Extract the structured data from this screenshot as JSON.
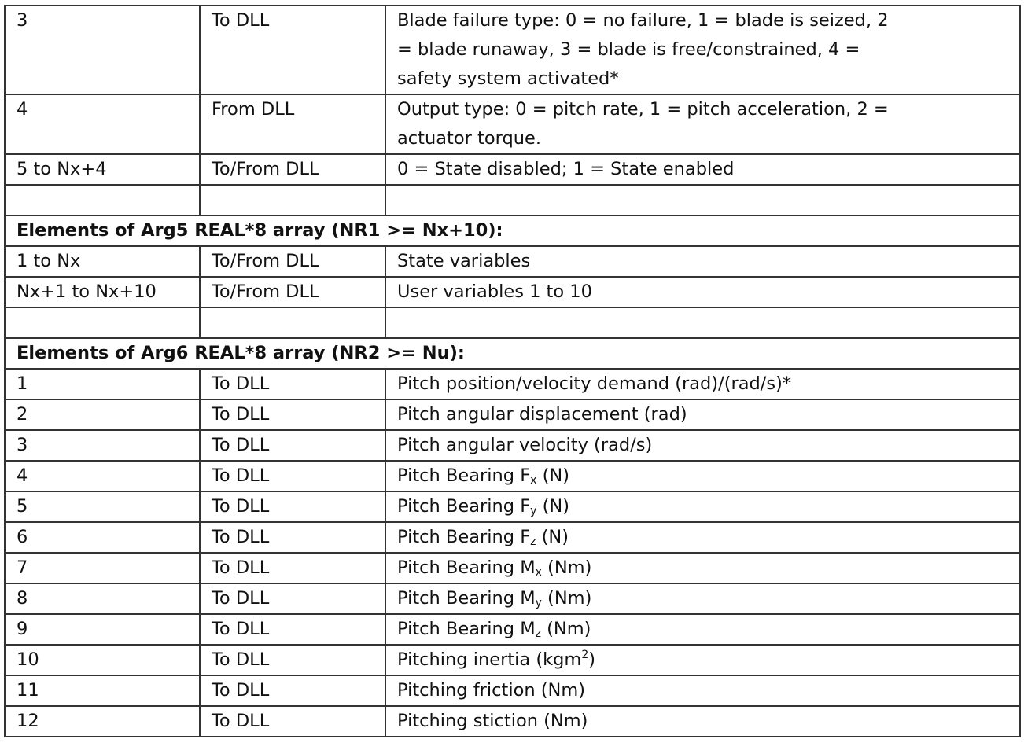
{
  "rows": [
    {
      "type": "row",
      "index": "3",
      "direction": "To DLL",
      "desc_lines": [
        "Blade failure type: 0 = no failure, 1 = blade is seized, 2",
        "= blade runaway, 3 = blade is free/constrained, 4 =",
        "safety system activated*"
      ]
    },
    {
      "type": "row",
      "index": "4",
      "direction": "From DLL",
      "desc_lines": [
        "Output type: 0 = pitch rate, 1 = pitch acceleration, 2 =",
        "actuator torque."
      ]
    },
    {
      "type": "row",
      "index": "5 to Nx+4",
      "direction": "To/From DLL",
      "desc_lines": [
        "0 = State disabled; 1 = State enabled"
      ]
    },
    {
      "type": "empty"
    },
    {
      "type": "header",
      "text": "Elements of Arg5 REAL*8 array (NR1 >= Nx+10):"
    },
    {
      "type": "row",
      "index": "1 to Nx",
      "direction": "To/From DLL",
      "desc_lines": [
        "State variables"
      ]
    },
    {
      "type": "row",
      "index": "Nx+1 to Nx+10",
      "direction": "To/From DLL",
      "desc_lines": [
        "User variables 1 to 10"
      ]
    },
    {
      "type": "empty"
    },
    {
      "type": "header",
      "text": "Elements of Arg6 REAL*8 array (NR2 >= Nu):"
    },
    {
      "type": "row",
      "index": "1",
      "direction": "To DLL",
      "desc_lines": [
        "Pitch position/velocity demand (rad)/(rad/s)*"
      ]
    },
    {
      "type": "row",
      "index": "2",
      "direction": "To DLL",
      "desc_lines": [
        "Pitch angular displacement (rad)"
      ]
    },
    {
      "type": "row",
      "index": "3",
      "direction": "To DLL",
      "desc_lines": [
        "Pitch angular velocity (rad/s)"
      ]
    },
    {
      "type": "row",
      "index": "4",
      "direction": "To DLL",
      "desc": "Pitch Bearing F",
      "sub": "x",
      "tail": " (N)"
    },
    {
      "type": "row",
      "index": "5",
      "direction": "To DLL",
      "desc": "Pitch Bearing F",
      "sub": "y",
      "tail": " (N)"
    },
    {
      "type": "row",
      "index": "6",
      "direction": "To DLL",
      "desc": "Pitch Bearing F",
      "sub": "z",
      "tail": " (N)"
    },
    {
      "type": "row",
      "index": "7",
      "direction": "To DLL",
      "desc": "Pitch Bearing M",
      "sub": "x",
      "tail": " (Nm)"
    },
    {
      "type": "row",
      "index": "8",
      "direction": "To DLL",
      "desc": "Pitch Bearing M",
      "sub": "y",
      "tail": " (Nm)"
    },
    {
      "type": "row",
      "index": "9",
      "direction": "To DLL",
      "desc": "Pitch Bearing M",
      "sub": "z",
      "tail": " (Nm)"
    },
    {
      "type": "row",
      "index": "10",
      "direction": "To DLL",
      "desc": "Pitching inertia (kgm",
      "sup": "2",
      "tail": ")"
    },
    {
      "type": "row",
      "index": "11",
      "direction": "To DLL",
      "desc_lines": [
        "Pitching friction (Nm)"
      ]
    },
    {
      "type": "row",
      "index": "12",
      "direction": "To DLL",
      "desc_lines": [
        "Pitching stiction (Nm)"
      ]
    }
  ]
}
